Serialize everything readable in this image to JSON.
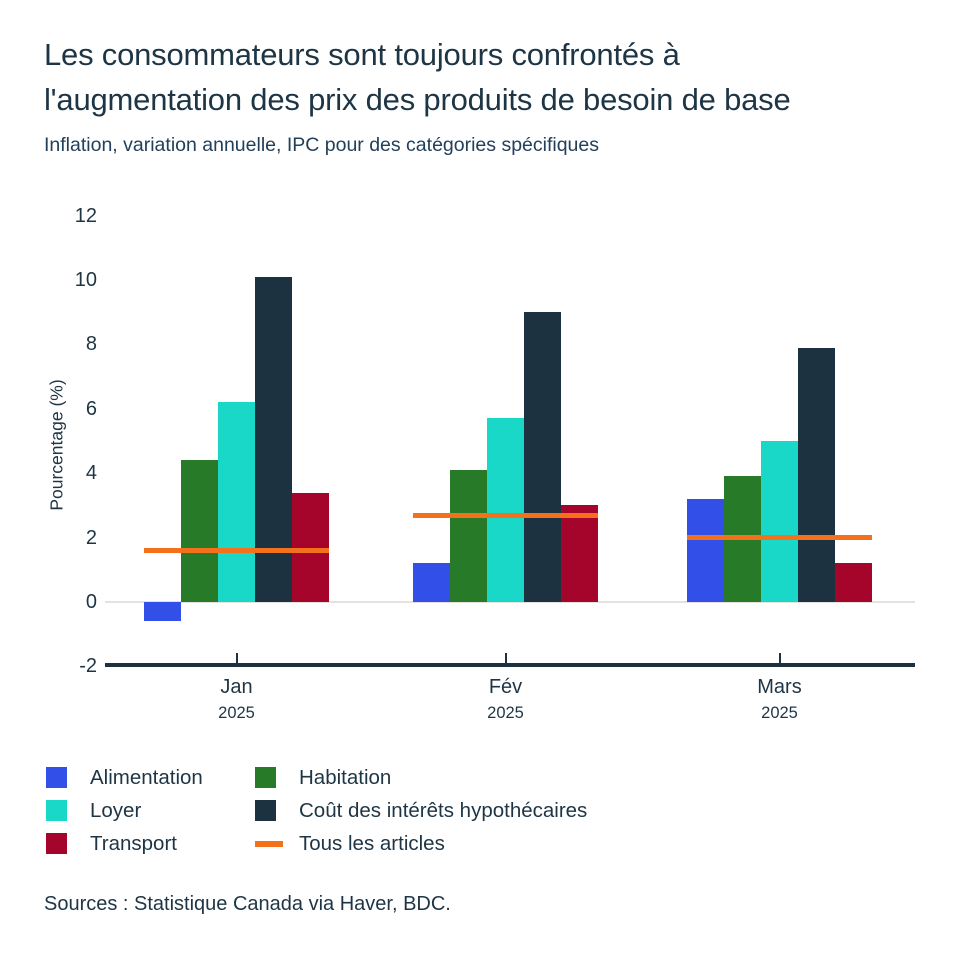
{
  "header": {
    "title": "Les consommateurs sont toujours confrontés à l'augmentation des prix des produits de besoin de base",
    "subtitle": "Inflation, variation annuelle, IPC pour des catégories spécifiques"
  },
  "chart_data": {
    "type": "bar",
    "title": "Les consommateurs sont toujours confrontés à l'augmentation des prix des produits de besoin de base",
    "subtitle": "Inflation, variation annuelle, IPC pour des catégories spécifiques",
    "xlabel": "",
    "ylabel": "Pourcentage (%)",
    "ylim": [
      -2,
      12
    ],
    "yticks": [
      12,
      10,
      8,
      6,
      4,
      2,
      0,
      -2
    ],
    "grid": false,
    "legend_position": "bottom",
    "categories": [
      "Jan",
      "Fév",
      "Mars"
    ],
    "category_year": "2025",
    "series": [
      {
        "name": "Alimentation",
        "color": "#3250E8",
        "values": [
          -0.6,
          1.2,
          3.2
        ]
      },
      {
        "name": "Habitation",
        "color": "#277A28",
        "values": [
          4.4,
          4.1,
          3.9
        ]
      },
      {
        "name": "Loyer",
        "color": "#19D8C8",
        "values": [
          6.2,
          5.7,
          5.0
        ]
      },
      {
        "name": "Coût des intérêts hypothécaires",
        "color": "#1C3240",
        "values": [
          10.1,
          9.0,
          7.9
        ]
      },
      {
        "name": "Transport",
        "color": "#A6052B",
        "values": [
          3.4,
          3.0,
          1.2
        ]
      }
    ],
    "line_series": {
      "name": "Tous les articles",
      "color": "#F4711C",
      "values": [
        1.6,
        2.7,
        2.0
      ]
    }
  },
  "legend": {
    "columns": [
      {
        "items": [
          {
            "label": "Alimentation",
            "color": "#3250E8",
            "marker": "square"
          },
          {
            "label": "Loyer",
            "color": "#19D8C8",
            "marker": "square"
          },
          {
            "label": "Transport",
            "color": "#A6052B",
            "marker": "square"
          }
        ]
      },
      {
        "items": [
          {
            "label": "Habitation",
            "color": "#277A28",
            "marker": "square"
          },
          {
            "label": "Coût des intérêts hypothécaires",
            "color": "#1C3240",
            "marker": "square"
          },
          {
            "label": "Tous les articles",
            "color": "#F4711C",
            "marker": "line"
          }
        ]
      }
    ]
  },
  "footer": {
    "source": "Sources : Statistique Canada via Haver, BDC."
  },
  "colors": {
    "text": "#1E3545",
    "axis": "#1C3240",
    "zero_gridline": "#E4E1DE",
    "all_items_line": "#F4711C",
    "background": "#FFFFFF"
  }
}
